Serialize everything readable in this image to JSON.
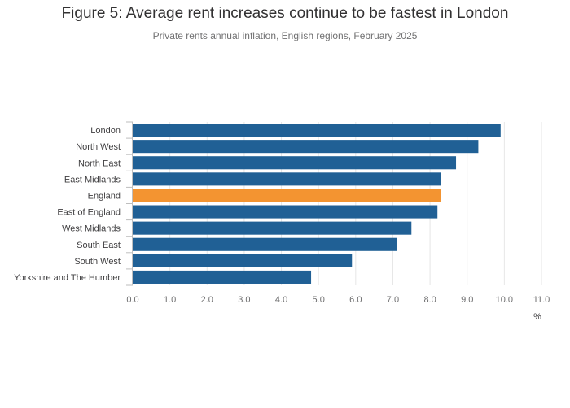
{
  "chart_data": {
    "type": "bar",
    "orientation": "horizontal",
    "title": "Figure 5: Average rent increases continue to be fastest in London",
    "subtitle": "Private rents annual inflation, English regions, February 2025",
    "xlabel": "%",
    "ylabel": "",
    "categories": [
      "London",
      "North West",
      "North East",
      "East Midlands",
      "England",
      "East of England",
      "West Midlands",
      "South East",
      "South West",
      "Yorkshire and The Humber"
    ],
    "values": [
      9.9,
      9.3,
      8.7,
      8.3,
      8.3,
      8.2,
      7.5,
      7.1,
      5.9,
      4.8
    ],
    "xlim": [
      0,
      11
    ],
    "xticks": [
      "0.0",
      "1.0",
      "2.0",
      "3.0",
      "4.0",
      "5.0",
      "6.0",
      "7.0",
      "8.0",
      "9.0",
      "10.0",
      "11.0"
    ],
    "grid": true,
    "highlight_category": "England",
    "colors": {
      "default_bar": "#206095",
      "highlight_bar": "#F39431",
      "gridline": "#e6e6e6",
      "axis_line": "#bebebe"
    }
  }
}
